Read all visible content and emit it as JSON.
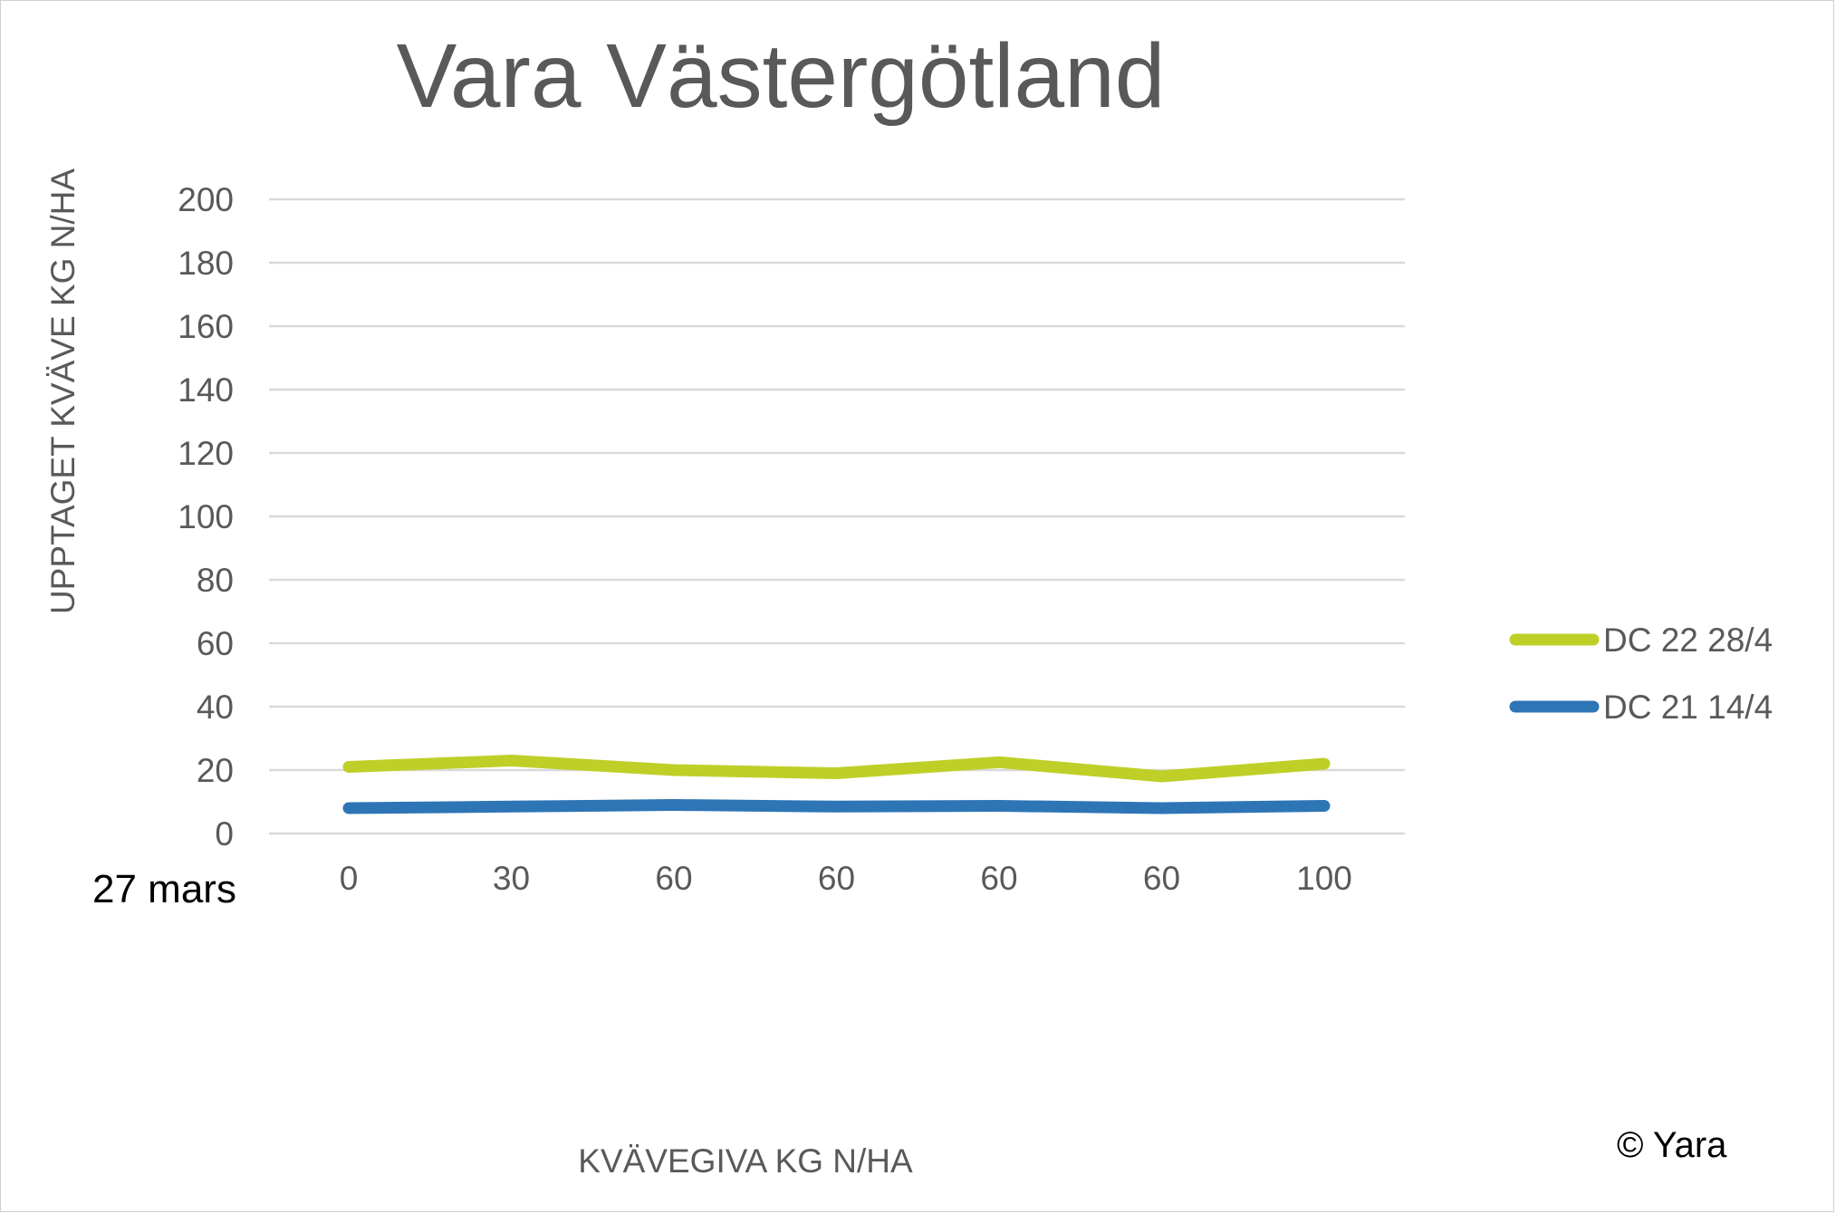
{
  "chart_data": {
    "type": "line",
    "title": "Vara Västergötland",
    "xlabel": "KVÄVEGIVA  KG N/HA",
    "ylabel": "UPPTAGET KVÄVE KG N/HA",
    "categories": [
      "0",
      "30",
      "60",
      "60",
      "60",
      "60",
      "100"
    ],
    "yticks": [
      0,
      20,
      40,
      60,
      80,
      100,
      120,
      140,
      160,
      180,
      200
    ],
    "ylim": [
      0,
      200
    ],
    "grid": true,
    "legend_position": "right",
    "series": [
      {
        "name": "DC 22 28/4",
        "color": "#bfcf28",
        "values": [
          21,
          23,
          20,
          19,
          22.5,
          18,
          22
        ]
      },
      {
        "name": "DC 21 14/4",
        "color": "#2e75b6",
        "values": [
          8,
          8.5,
          9,
          8.5,
          8.7,
          8,
          8.7
        ]
      }
    ],
    "annotations": {
      "date_note": "27 mars",
      "copyright": "© Yara"
    }
  }
}
